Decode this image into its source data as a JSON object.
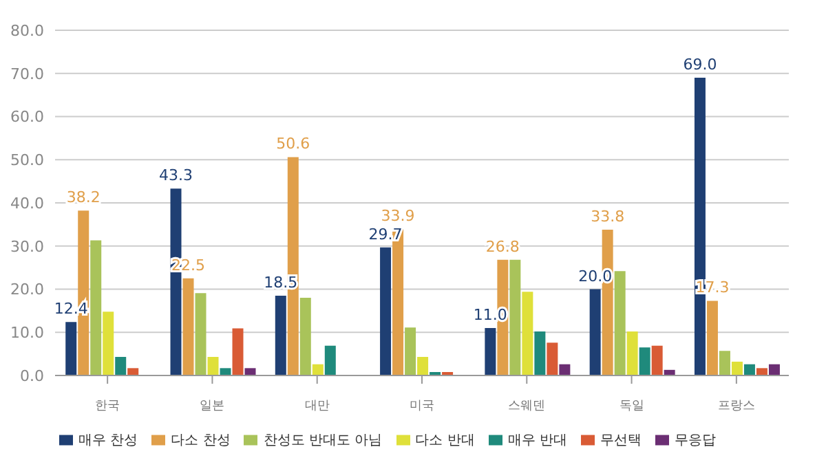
{
  "chart_data": {
    "type": "bar",
    "categories": [
      "한국",
      "일본",
      "대만",
      "미국",
      "스웨덴",
      "독일",
      "프랑스"
    ],
    "series": [
      {
        "name": "매우 찬성",
        "color": "#1f3f73",
        "values": [
          12.4,
          43.3,
          18.5,
          29.7,
          11.0,
          20.0,
          69.0
        ],
        "value_labels": [
          "12.4",
          "43.3",
          "18.5",
          "29.7",
          "11.0",
          "20.0",
          "69.0"
        ]
      },
      {
        "name": "다소 찬성",
        "color": "#e09f4a",
        "values": [
          38.2,
          22.5,
          50.6,
          33.9,
          26.8,
          33.8,
          17.3
        ],
        "value_labels": [
          "38.2",
          "22.5",
          "50.6",
          "33.9",
          "26.8",
          "33.8",
          "17.3"
        ]
      },
      {
        "name": "찬성도 반대도 아님",
        "color": "#a9c35a",
        "values": [
          31.3,
          19.1,
          18.0,
          11.1,
          26.8,
          24.2,
          5.7
        ]
      },
      {
        "name": "다소 반대",
        "color": "#dfe03a",
        "values": [
          14.8,
          4.3,
          2.6,
          4.3,
          19.4,
          10.2,
          3.2
        ]
      },
      {
        "name": "매우 반대",
        "color": "#1f8a7c",
        "values": [
          4.3,
          1.7,
          6.9,
          0.8,
          10.2,
          6.5,
          2.6
        ]
      },
      {
        "name": "무선택",
        "color": "#d95b35",
        "values": [
          1.7,
          10.9,
          null,
          0.8,
          7.6,
          6.9,
          1.7
        ]
      },
      {
        "name": "무응답",
        "color": "#6b2e73",
        "values": [
          null,
          1.7,
          null,
          null,
          2.6,
          1.3,
          2.6
        ]
      }
    ],
    "ylim": [
      0,
      80
    ],
    "yticks": [
      {
        "value": 0,
        "label": "0.0"
      },
      {
        "value": 10,
        "label": "10.0"
      },
      {
        "value": 20,
        "label": "20.0"
      },
      {
        "value": 30,
        "label": "30.0"
      },
      {
        "value": 40,
        "label": "40.0"
      },
      {
        "value": 50,
        "label": "50.0"
      },
      {
        "value": 60,
        "label": "60.0"
      },
      {
        "value": 70,
        "label": "70.0"
      },
      {
        "value": 80,
        "label": "80.0"
      }
    ],
    "grid": "y",
    "legend": "bottom"
  }
}
